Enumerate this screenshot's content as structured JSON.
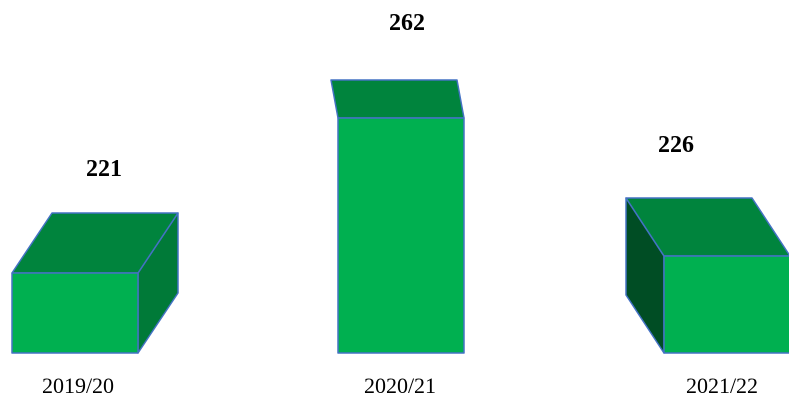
{
  "chart_data": {
    "type": "bar",
    "categories": [
      "2019/20",
      "2020/21",
      "2021/22"
    ],
    "values": [
      221,
      262,
      226
    ],
    "data_labels": [
      "221",
      "262",
      "226"
    ],
    "title": "",
    "xlabel": "",
    "ylabel": "",
    "style": "3d-boxes",
    "colors": {
      "front": "#00B050",
      "top": "#00843D",
      "side": "#007A38",
      "side_dark": "#004D24",
      "edge": "#4472C4"
    }
  }
}
